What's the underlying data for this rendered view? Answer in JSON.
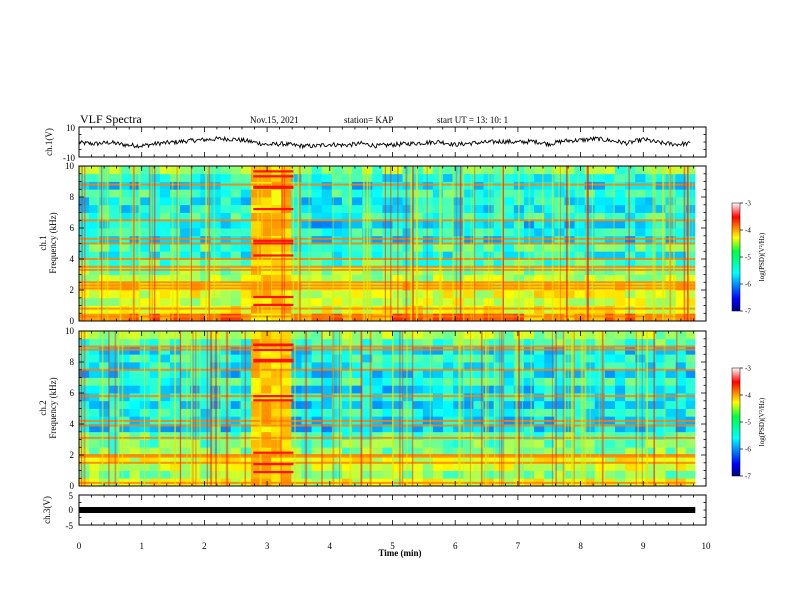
{
  "header": {
    "title": "VLF Spectra",
    "date": "Nov.15, 2021",
    "station": "station= KAP",
    "start": "start  UT =   13: 10: 1"
  },
  "chart_data": [
    {
      "type": "line",
      "panel": "ch1-waveform",
      "ylabel": "ch.1(V)",
      "ylim": [
        -10,
        10
      ],
      "ytick_labels": [
        "10",
        "-10"
      ],
      "series": [
        {
          "color": "#000000",
          "x": [
            0.0,
            0.25,
            0.5,
            0.75,
            1.0,
            1.25,
            1.5,
            1.75,
            2.0,
            2.25,
            2.5,
            2.75,
            3.0,
            3.25,
            3.5,
            3.75,
            4.0,
            4.25,
            4.5,
            4.75,
            5.0,
            5.25,
            5.5,
            5.75,
            6.0,
            6.25,
            6.5,
            6.75,
            7.0,
            7.25,
            7.5,
            7.75,
            8.0,
            8.25,
            8.5,
            8.75,
            9.0,
            9.25,
            9.5,
            9.75
          ],
          "values": [
            -0.5,
            -1.2,
            -0.3,
            -2.0,
            -2.5,
            -1.0,
            -0.2,
            0.8,
            1.5,
            2.2,
            1.8,
            0.2,
            -1.8,
            -1.2,
            -2.5,
            -2.8,
            -1.5,
            -2.2,
            -1.0,
            -2.6,
            -1.8,
            -1.2,
            -0.5,
            0.2,
            -1.8,
            -0.8,
            -0.2,
            0.4,
            -0.2,
            0.5,
            -1.3,
            0.8,
            1.2,
            2.2,
            0.8,
            -0.8,
            1.8,
            -0.5,
            -1.5,
            -1.0
          ]
        }
      ]
    },
    {
      "type": "heatmap",
      "panel": "ch1-spectrogram",
      "ylabel": "ch.1\nFrequency  (kHz)",
      "xlim": [
        0,
        10
      ],
      "ylim": [
        0,
        10
      ],
      "ytick_labels": [
        "0",
        "2",
        "4",
        "6",
        "8",
        "10"
      ],
      "colorbar": {
        "label": "log(PSD)(V²/Hz)",
        "range": [
          -7,
          -3
        ],
        "tick_labels": [
          "-3",
          "-4",
          "-5",
          "-6",
          "-7"
        ]
      },
      "freq_bands_khz": [
        0,
        0.5,
        1.0,
        1.5,
        2.0,
        2.5,
        3.0,
        3.5,
        4.0,
        4.5,
        5.0,
        5.5,
        6.0,
        6.5,
        7.0,
        7.5,
        8.0,
        8.5,
        9.0,
        9.5,
        10.0
      ],
      "log_psd_background": [
        -4.0,
        -4.5,
        -4.7,
        -4.6,
        -4.4,
        -4.8,
        -5.0,
        -5.2,
        -5.4,
        -5.2,
        -5.6,
        -5.4,
        -5.6,
        -5.3,
        -5.5,
        -5.5,
        -5.3,
        -5.6,
        -5.4,
        -5.0
      ],
      "bright_lines_khz": [
        0.3,
        0.8,
        2.1,
        2.3,
        2.5,
        3.3,
        3.5,
        4.0,
        5.0,
        5.3,
        6.5,
        8.8
      ],
      "noise_burst": {
        "t_start_min": 2.78,
        "t_end_min": 3.42,
        "log_psd": -4.3
      }
    },
    {
      "type": "heatmap",
      "panel": "ch2-spectrogram",
      "ylabel": "ch.2\nFrequency  (kHz)",
      "xlim": [
        0,
        10
      ],
      "ylim": [
        0,
        10
      ],
      "ytick_labels": [
        "0",
        "2",
        "4",
        "6",
        "8",
        "10"
      ],
      "colorbar": {
        "label": "log(PSD)(V²/Hz)",
        "range": [
          -7,
          -3
        ],
        "tick_labels": [
          "-3",
          "-4",
          "-5",
          "-6",
          "-7"
        ]
      },
      "freq_bands_khz": [
        0,
        0.5,
        1.0,
        1.5,
        2.0,
        2.5,
        3.0,
        3.5,
        4.0,
        4.5,
        5.0,
        5.5,
        6.0,
        6.5,
        7.0,
        7.5,
        8.0,
        8.5,
        9.0,
        9.5,
        10.0
      ],
      "log_psd_background": [
        -4.6,
        -5.0,
        -4.7,
        -4.6,
        -5.0,
        -5.1,
        -5.2,
        -5.6,
        -5.6,
        -5.4,
        -5.6,
        -5.5,
        -5.6,
        -5.3,
        -5.6,
        -5.5,
        -5.4,
        -5.6,
        -5.2,
        -4.9
      ],
      "bright_lines_khz": [
        0.2,
        1.5,
        1.9,
        2.0,
        3.1,
        3.9,
        4.2,
        5.8,
        7.5,
        8.8,
        9.0
      ],
      "noise_burst": {
        "t_start_min": 2.78,
        "t_end_min": 3.42,
        "log_psd": -4.3
      }
    },
    {
      "type": "line",
      "panel": "ch3-waveform",
      "ylabel": "ch.3(V)",
      "ylim": [
        -5,
        5
      ],
      "ytick_labels": [
        "5",
        "0",
        "-5"
      ],
      "series": [
        {
          "color": "#000000",
          "x": [
            0,
            9.83
          ],
          "values": [
            0,
            0
          ]
        }
      ]
    }
  ],
  "x_axis": {
    "label": "Time  (min)",
    "range": [
      0,
      10
    ],
    "tick_labels": [
      "0",
      "1",
      "2",
      "3",
      "4",
      "5",
      "6",
      "7",
      "8",
      "9",
      "10"
    ]
  }
}
